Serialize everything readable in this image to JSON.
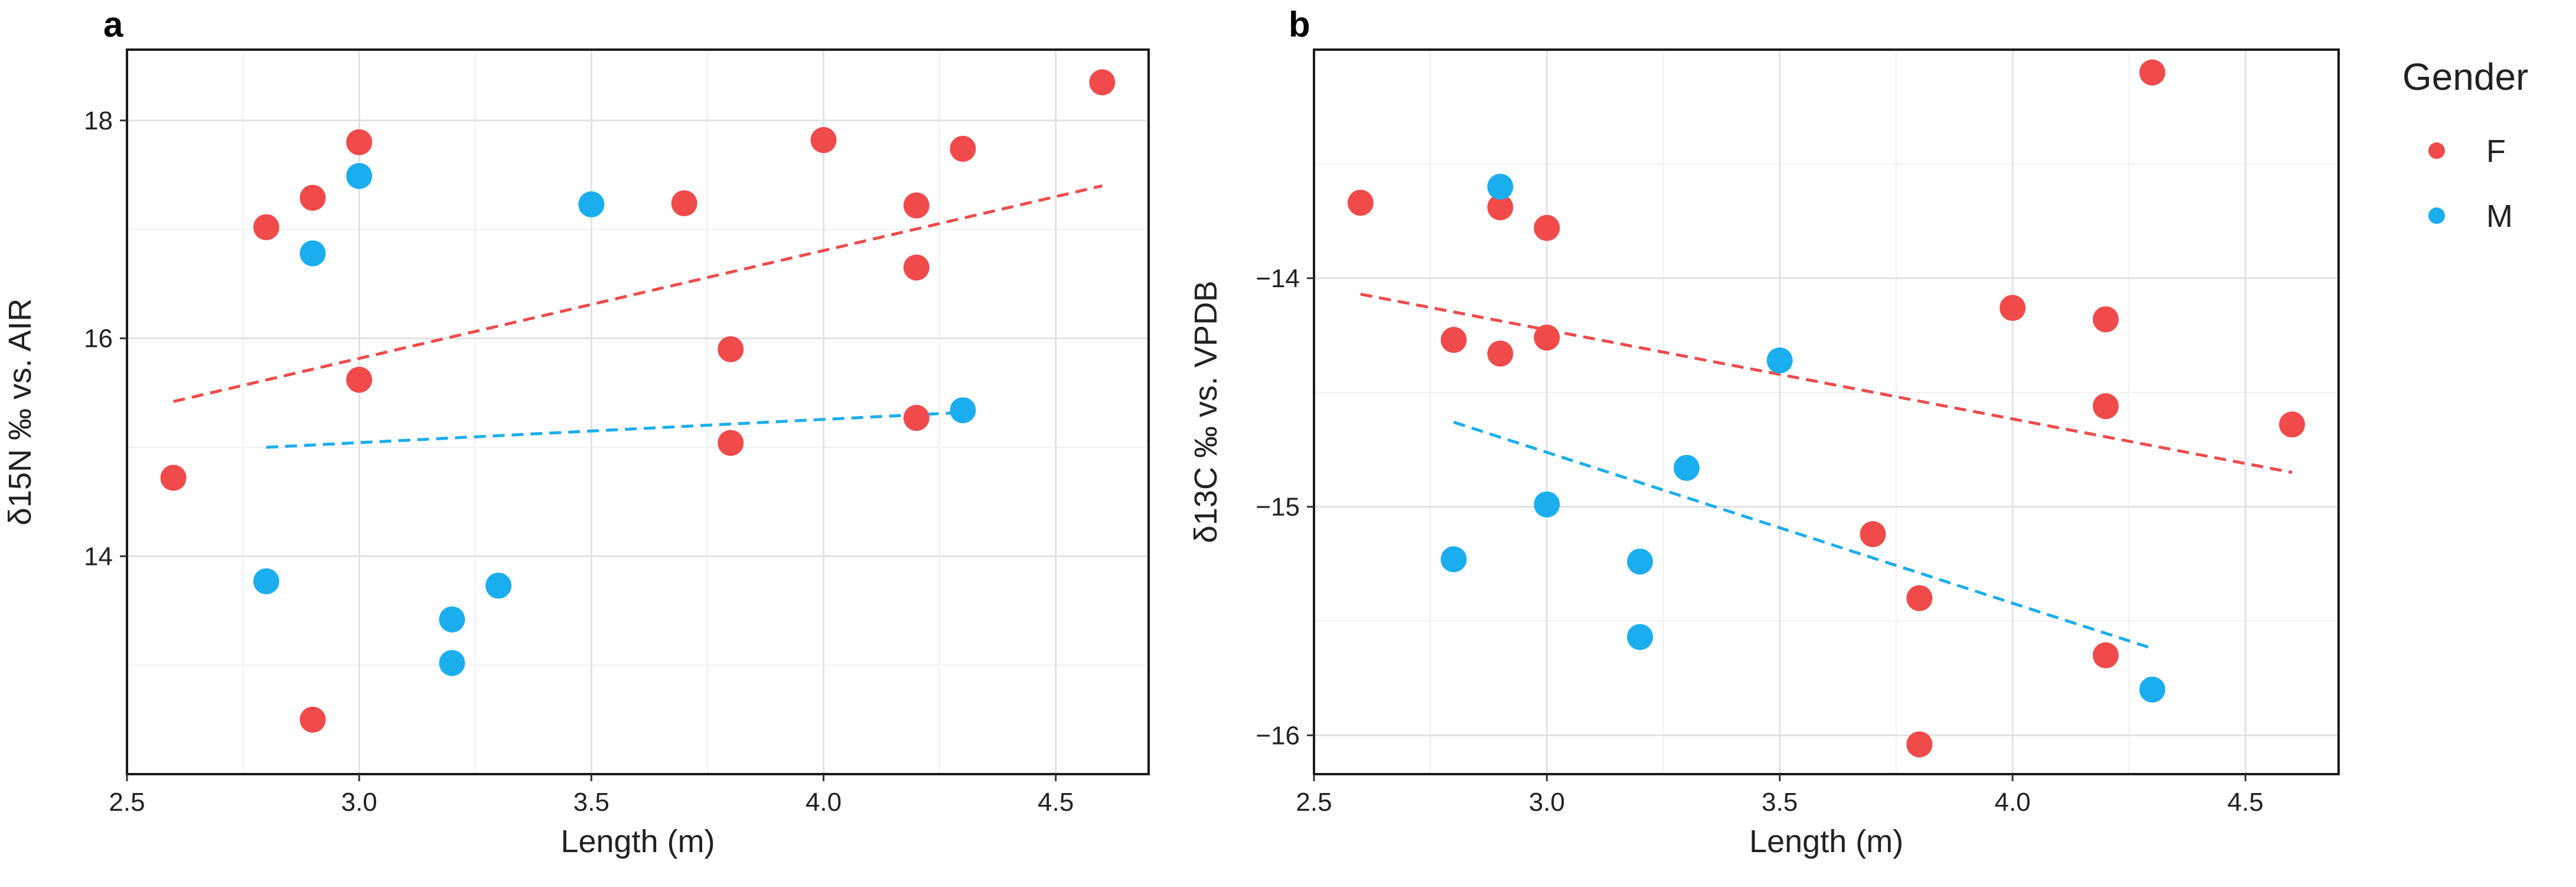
{
  "colors": {
    "F": "#F04A4A",
    "M": "#1AAEEF"
  },
  "legend": {
    "title": "Gender",
    "items": [
      {
        "label": "F",
        "color": "#F04A4A"
      },
      {
        "label": "M",
        "color": "#1AAEEF"
      }
    ]
  },
  "chart_data": [
    {
      "type": "scatter",
      "panel_label": "a",
      "title": "",
      "xlabel": "Length (m)",
      "ylabel": "δ15N ‰ vs. AIR",
      "xlim": [
        2.5,
        4.7
      ],
      "ylim": [
        12.0,
        18.65
      ],
      "xticks": [
        2.5,
        3.0,
        3.5,
        4.0,
        4.5
      ],
      "xtick_labels": [
        "2.5",
        "3.0",
        "3.5",
        "4.0",
        "4.5"
      ],
      "yticks": [
        14,
        16,
        18
      ],
      "ytick_labels": [
        "14",
        "16",
        "18"
      ],
      "grid": true,
      "series": [
        {
          "name": "F",
          "x": [
            2.6,
            2.8,
            2.9,
            2.9,
            3.0,
            3.0,
            3.7,
            3.8,
            3.8,
            4.0,
            4.2,
            4.2,
            4.2,
            4.3,
            4.6
          ],
          "y": [
            14.72,
            17.02,
            17.29,
            12.5,
            17.8,
            15.62,
            17.24,
            15.9,
            15.04,
            17.82,
            17.22,
            16.65,
            15.27,
            17.74,
            18.35
          ],
          "trend": {
            "x": [
              2.6,
              4.6
            ],
            "y": [
              15.42,
              17.4
            ]
          }
        },
        {
          "name": "M",
          "x": [
            2.8,
            2.9,
            3.0,
            3.2,
            3.2,
            3.3,
            3.5,
            4.3
          ],
          "y": [
            13.77,
            16.78,
            17.49,
            13.42,
            13.02,
            13.73,
            17.23,
            15.34
          ],
          "trend": {
            "x": [
              2.8,
              4.3
            ],
            "y": [
              15.0,
              15.32
            ]
          }
        }
      ]
    },
    {
      "type": "scatter",
      "panel_label": "b",
      "title": "",
      "xlabel": "Length (m)",
      "ylabel": "δ13C ‰ vs. VPDB",
      "xlim": [
        2.5,
        4.7
      ],
      "ylim": [
        -16.17,
        -13.0
      ],
      "xticks": [
        2.5,
        3.0,
        3.5,
        4.0,
        4.5
      ],
      "xtick_labels": [
        "2.5",
        "3.0",
        "3.5",
        "4.0",
        "4.5"
      ],
      "yticks": [
        -16,
        -15,
        -14
      ],
      "ytick_labels": [
        "−16",
        "−15",
        "−14"
      ],
      "grid": true,
      "series": [
        {
          "name": "F",
          "x": [
            2.6,
            2.8,
            2.9,
            2.9,
            3.0,
            3.0,
            3.7,
            3.8,
            3.8,
            4.0,
            4.2,
            4.2,
            4.2,
            4.3,
            4.6
          ],
          "y": [
            -13.67,
            -14.27,
            -14.33,
            -13.69,
            -13.78,
            -14.26,
            -15.12,
            -15.4,
            -16.04,
            -14.13,
            -14.18,
            -14.56,
            -15.65,
            -13.1,
            -14.64
          ],
          "trend": {
            "x": [
              2.6,
              4.6
            ],
            "y": [
              -14.07,
              -14.85
            ]
          }
        },
        {
          "name": "M",
          "x": [
            2.8,
            2.9,
            3.0,
            3.2,
            3.2,
            3.3,
            3.5,
            4.3
          ],
          "y": [
            -15.23,
            -13.6,
            -14.99,
            -15.24,
            -15.57,
            -14.83,
            -14.36,
            -15.8
          ],
          "trend": {
            "x": [
              2.8,
              4.3
            ],
            "y": [
              -14.63,
              -15.62
            ]
          }
        }
      ]
    }
  ]
}
